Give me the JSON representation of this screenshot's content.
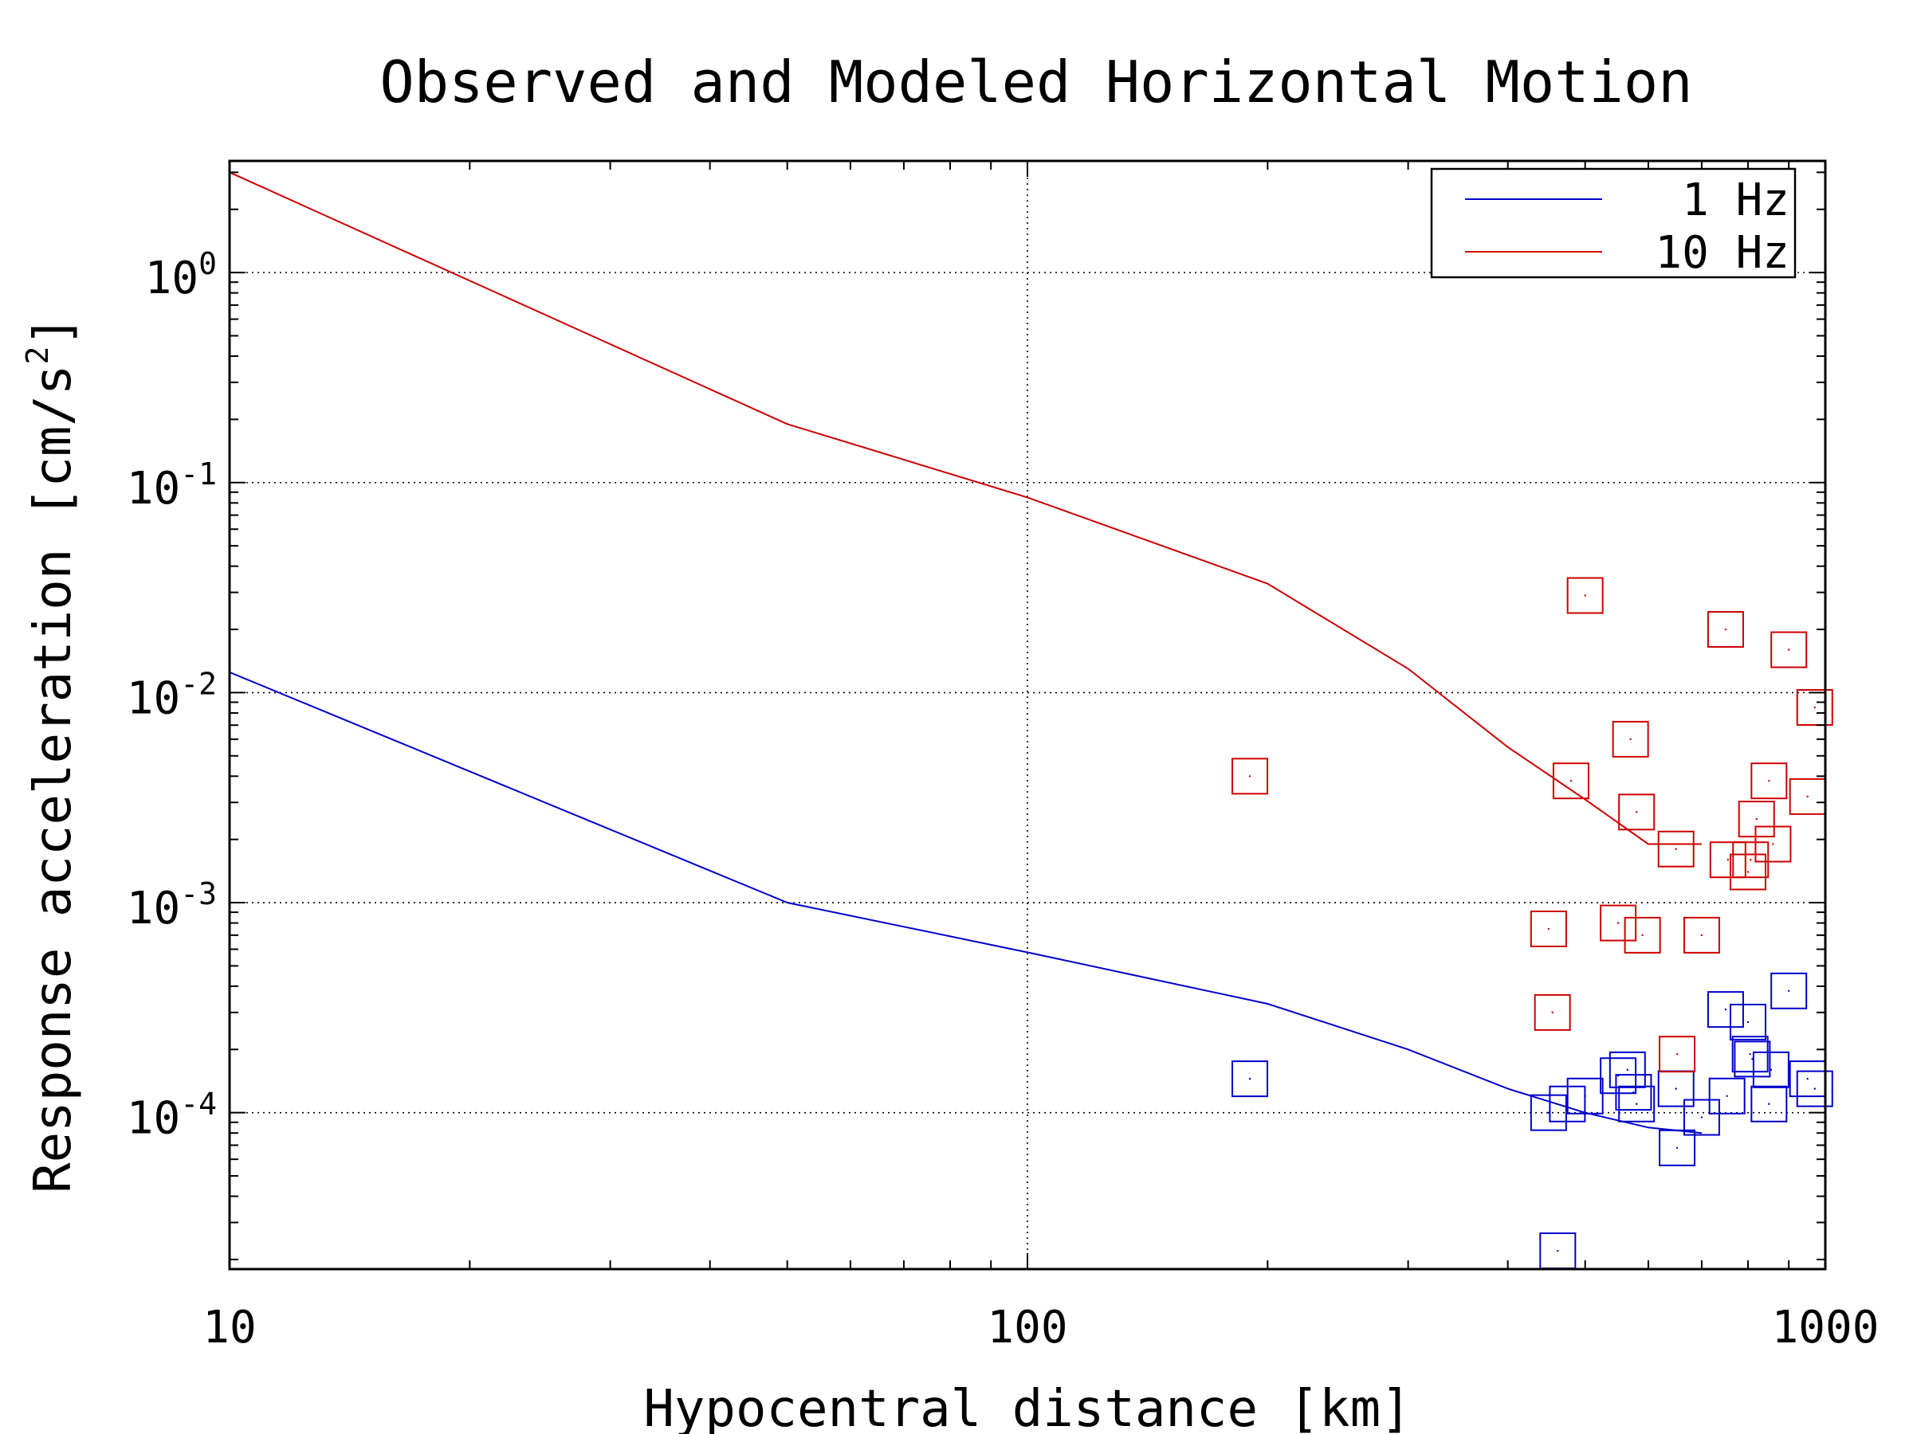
{
  "chart_data": {
    "type": "scatter",
    "title": "Observed and Modeled Horizontal Motion",
    "xlabel": "Hypocentral distance [km]",
    "ylabel": "Response acceleration [cm/s",
    "ylabel_sup": "2",
    "ylabel_end": "]",
    "xscale": "log",
    "yscale": "log",
    "xlim": [
      10,
      1000
    ],
    "ylim": [
      1.8e-05,
      3.4
    ],
    "xticks": [
      {
        "value": 10,
        "label": "10"
      },
      {
        "value": 100,
        "label": "100"
      },
      {
        "value": 1000,
        "label": "1000"
      }
    ],
    "yticks": [
      {
        "value": 1,
        "base": "10",
        "exp": "0"
      },
      {
        "value": 0.1,
        "base": "10",
        "exp": "-1"
      },
      {
        "value": 0.01,
        "base": "10",
        "exp": "-2"
      },
      {
        "value": 0.001,
        "base": "10",
        "exp": "-3"
      },
      {
        "value": 0.0001,
        "base": "10",
        "exp": "-4"
      }
    ],
    "grid": "dotted",
    "legend_position": "top-right",
    "series": [
      {
        "name": "1 Hz",
        "color": "#0000cc",
        "line_x": [
          10,
          50,
          100,
          200,
          300,
          400,
          500,
          600,
          700
        ],
        "line_y": [
          0.0125,
          0.001,
          0.00058,
          0.00033,
          0.0002,
          0.00013,
          0.0001,
          8.5e-05,
          8e-05
        ],
        "observed_x": [
          190,
          450,
          462,
          475,
          500,
          550,
          565,
          575,
          580,
          650,
          652,
          700,
          750,
          753,
          800,
          805,
          810,
          850,
          855,
          900,
          950,
          970
        ],
        "observed_y": [
          0.000145,
          0.0001,
          2.2e-05,
          0.00011,
          0.00012,
          0.00015,
          0.00016,
          0.000125,
          0.00011,
          0.00013,
          6.8e-05,
          9.5e-05,
          0.00031,
          0.00012,
          0.00027,
          0.00019,
          0.00018,
          0.00011,
          0.00016,
          0.00038,
          0.000145,
          0.00013
        ]
      },
      {
        "name": "10 Hz",
        "color": "#cc0000",
        "line_x": [
          10,
          50,
          100,
          200,
          300,
          400,
          500,
          600,
          700
        ],
        "line_y": [
          3,
          0.19,
          0.085,
          0.033,
          0.013,
          0.0055,
          0.0031,
          0.0019,
          0.0019
        ],
        "observed_x": [
          190,
          450,
          455,
          480,
          500,
          550,
          570,
          580,
          590,
          650,
          652,
          700,
          750,
          755,
          800,
          806,
          820,
          850,
          860,
          900,
          950,
          970
        ],
        "observed_y": [
          0.004,
          0.00075,
          0.0003,
          0.0038,
          0.029,
          0.0008,
          0.006,
          0.0027,
          0.0007,
          0.0018,
          0.00019,
          0.0007,
          0.02,
          0.0016,
          0.0014,
          0.0016,
          0.0025,
          0.0038,
          0.0019,
          0.016,
          0.0032,
          0.0085
        ]
      }
    ]
  }
}
